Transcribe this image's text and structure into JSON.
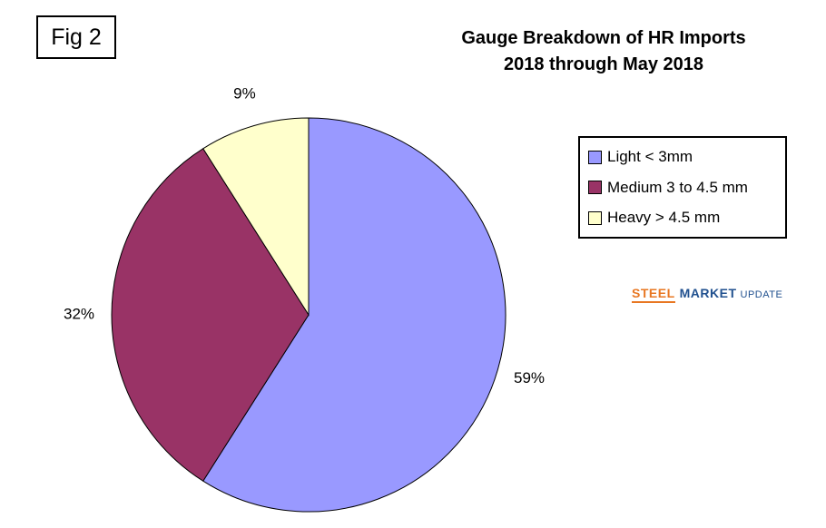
{
  "figure": {
    "label": "Fig 2"
  },
  "title": {
    "line1": "Gauge Breakdown of HR Imports",
    "line2": "2018 through May 2018"
  },
  "legend": {
    "items": [
      {
        "label": "Light < 3mm",
        "color": "#9999FF"
      },
      {
        "label": "Medium 3 to 4.5 mm",
        "color": "#993366"
      },
      {
        "label": "Heavy > 4.5 mm",
        "color": "#FFFFCC"
      }
    ]
  },
  "logo": {
    "steel": "STEEL",
    "market": "MARKET",
    "update": "UPDATE",
    "steel_color": "#E87722",
    "blue_color": "#21518F"
  },
  "chart_data": {
    "type": "pie",
    "title": "Gauge Breakdown of HR Imports 2018 through May 2018",
    "labels": [
      "Light < 3mm",
      "Medium 3 to 4.5 mm",
      "Heavy > 4.5 mm"
    ],
    "values": [
      59,
      32,
      9
    ],
    "unit": "%",
    "data_labels": [
      "59%",
      "32%",
      "9%"
    ],
    "colors": [
      "#9999FF",
      "#993366",
      "#FFFFCC"
    ],
    "slice_border_color": "#000000",
    "start_angle_deg": 0,
    "direction": "clockwise",
    "legend_position": "right",
    "figure_label": "Fig 2"
  }
}
